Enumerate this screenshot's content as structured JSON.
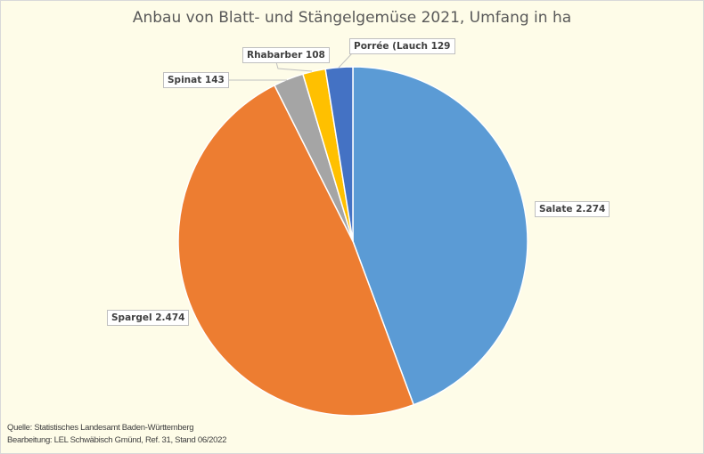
{
  "chart_data": {
    "type": "pie",
    "title": "Anbau von Blatt- und Stängelgemüse 2021, Umfang in ha",
    "categories": [
      "Salate",
      "Spargel",
      "Spinat",
      "Rhabarber",
      "Porrée (Lauch"
    ],
    "values": [
      2274,
      2474,
      143,
      108,
      129
    ],
    "data_labels": [
      "Salate  2.274",
      "Spargel  2.474",
      "Spinat  143",
      "Rhabarber  108",
      "Porrée (Lauch  129"
    ],
    "colors": [
      "#5b9bd5",
      "#ed7d31",
      "#a5a5a5",
      "#ffc000",
      "#4472c4"
    ],
    "start_angle": "top, clockwise",
    "legend": "none"
  },
  "footer": {
    "source": "Quelle: Statistisches Landesamt Baden-Württemberg",
    "editor": "Bearbeitung: LEL Schwäbisch Gmünd, Ref. 31, Stand 06/2022"
  }
}
